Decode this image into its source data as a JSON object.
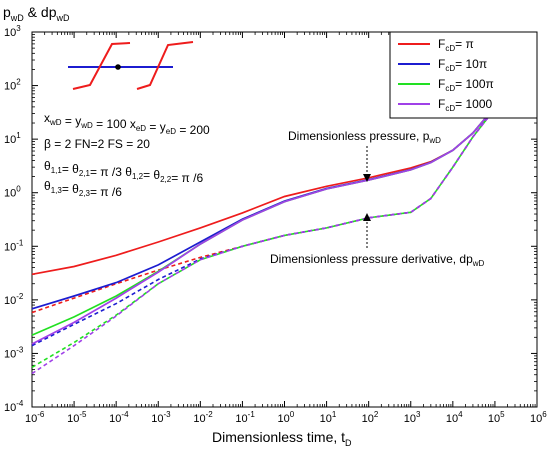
{
  "chart_data": {
    "type": "line",
    "x_scale": "log",
    "y_scale": "log",
    "xlim": [
      1e-06,
      1000000.0
    ],
    "ylim": [
      0.0001,
      1000.0
    ],
    "grid": false,
    "legend_position": "top-right",
    "ylabel": {
      "main": "p",
      "sub1": "wD",
      "mid": " & dp",
      "sub2": "wD"
    },
    "xlabel": {
      "main": "Dimensionless time, t",
      "sub": "D"
    },
    "x_ticks": [
      {
        "base": "10",
        "exp": "-6",
        "value": 1e-06
      },
      {
        "base": "10",
        "exp": "-5",
        "value": 1e-05
      },
      {
        "base": "10",
        "exp": "-4",
        "value": 0.0001
      },
      {
        "base": "10",
        "exp": "-3",
        "value": 0.001
      },
      {
        "base": "10",
        "exp": "-2",
        "value": 0.01
      },
      {
        "base": "10",
        "exp": "-1",
        "value": 0.1
      },
      {
        "base": "10",
        "exp": "0",
        "value": 1.0
      },
      {
        "base": "10",
        "exp": "1",
        "value": 10.0
      },
      {
        "base": "10",
        "exp": "2",
        "value": 100.0
      },
      {
        "base": "10",
        "exp": "3",
        "value": 1000.0
      },
      {
        "base": "10",
        "exp": "4",
        "value": 10000.0
      },
      {
        "base": "10",
        "exp": "5",
        "value": 100000.0
      },
      {
        "base": "10",
        "exp": "6",
        "value": 1000000.0
      }
    ],
    "y_ticks": [
      {
        "base": "10",
        "exp": "-4",
        "value": 0.0001
      },
      {
        "base": "10",
        "exp": "-3",
        "value": 0.001
      },
      {
        "base": "10",
        "exp": "-2",
        "value": 0.01
      },
      {
        "base": "10",
        "exp": "-1",
        "value": 0.1
      },
      {
        "base": "10",
        "exp": "0",
        "value": 1.0
      },
      {
        "base": "10",
        "exp": "1",
        "value": 10.0
      },
      {
        "base": "10",
        "exp": "2",
        "value": 100.0
      },
      {
        "base": "10",
        "exp": "3",
        "value": 1000.0
      }
    ],
    "series": [
      {
        "name": "F_cD = π",
        "legend": {
          "main": "F",
          "sub": "cD",
          "rest": "= π"
        },
        "color": "#ee1c1c",
        "pressure": {
          "x": [
            1e-06,
            1e-05,
            0.0001,
            0.001,
            0.01,
            0.1,
            1,
            10,
            100,
            1000,
            3000,
            10000,
            30000,
            100000,
            300000,
            1000000
          ],
          "y": [
            0.03,
            0.042,
            0.068,
            0.12,
            0.22,
            0.42,
            0.85,
            1.32,
            1.9,
            2.9,
            3.8,
            6.2,
            13,
            40,
            100,
            150
          ]
        },
        "derivative": {
          "x": [
            1e-06,
            1e-05,
            0.0001,
            0.001,
            0.01,
            0.1,
            1,
            10,
            100,
            1000,
            3000,
            10000,
            30000,
            100000,
            300000,
            1000000
          ],
          "y": [
            0.0058,
            0.0108,
            0.02,
            0.036,
            0.062,
            0.1,
            0.16,
            0.22,
            0.34,
            0.43,
            0.78,
            3.0,
            11,
            37,
            97,
            150
          ]
        }
      },
      {
        "name": "F_cD = 10π",
        "legend": {
          "main": "F",
          "sub": "cD",
          "rest": "= 10π"
        },
        "color": "#1c1cd0",
        "pressure": {
          "x": [
            1e-06,
            1e-05,
            0.0001,
            0.001,
            0.01,
            0.1,
            1,
            10,
            100,
            1000,
            3000,
            10000,
            30000,
            100000,
            300000,
            1000000
          ],
          "y": [
            0.0068,
            0.0118,
            0.021,
            0.045,
            0.12,
            0.32,
            0.7,
            1.2,
            1.75,
            2.7,
            3.7,
            6.2,
            13,
            40,
            100,
            150
          ]
        },
        "derivative": {
          "x": [
            1e-06,
            1e-05,
            0.0001,
            0.001,
            0.01,
            0.1,
            1,
            10,
            100,
            1000,
            3000,
            10000,
            30000,
            100000,
            300000,
            1000000
          ],
          "y": [
            0.0014,
            0.0035,
            0.0085,
            0.024,
            0.058,
            0.1,
            0.16,
            0.22,
            0.34,
            0.43,
            0.78,
            3.0,
            11,
            37,
            97,
            150
          ]
        }
      },
      {
        "name": "F_cD = 100π",
        "legend": {
          "main": "F",
          "sub": "cD",
          "rest": "= 100π"
        },
        "color": "#22e022",
        "pressure": {
          "x": [
            1e-06,
            1e-05,
            0.0001,
            0.001,
            0.01,
            0.1,
            1,
            10,
            100,
            1000,
            3000,
            10000,
            30000,
            100000,
            300000,
            1000000
          ],
          "y": [
            0.0022,
            0.0048,
            0.0118,
            0.034,
            0.11,
            0.31,
            0.68,
            1.18,
            1.72,
            2.68,
            3.65,
            6.2,
            13,
            40,
            100,
            150
          ]
        },
        "derivative": {
          "x": [
            1e-06,
            1e-05,
            0.0001,
            0.001,
            0.01,
            0.1,
            1,
            10,
            100,
            1000,
            3000,
            10000,
            30000,
            100000,
            300000,
            1000000
          ],
          "y": [
            0.00055,
            0.0016,
            0.0052,
            0.02,
            0.056,
            0.1,
            0.16,
            0.22,
            0.34,
            0.43,
            0.78,
            3.0,
            11,
            37,
            97,
            150
          ]
        }
      },
      {
        "name": "F_cD = 1000",
        "legend": {
          "main": "F",
          "sub": "cD",
          "rest": "= 1000"
        },
        "color": "#a040e8",
        "pressure": {
          "x": [
            1e-06,
            1e-05,
            0.0001,
            0.001,
            0.01,
            0.1,
            1,
            10,
            100,
            1000,
            3000,
            10000,
            30000,
            100000,
            300000,
            1000000
          ],
          "y": [
            0.0015,
            0.0038,
            0.0108,
            0.033,
            0.11,
            0.31,
            0.68,
            1.18,
            1.72,
            2.68,
            3.65,
            6.2,
            13,
            40,
            100,
            150
          ]
        },
        "derivative": {
          "x": [
            1e-06,
            1e-05,
            0.0001,
            0.001,
            0.01,
            0.1,
            1,
            10,
            100,
            1000,
            3000,
            10000,
            30000,
            100000,
            300000,
            1000000
          ],
          "y": [
            0.00042,
            0.0014,
            0.005,
            0.02,
            0.056,
            0.1,
            0.16,
            0.22,
            0.34,
            0.43,
            0.78,
            3.0,
            11,
            37,
            97,
            150
          ]
        }
      }
    ],
    "annotations": {
      "pressure": {
        "main": "Dimensionless pressure, p",
        "sub": "wD"
      },
      "derivative": {
        "main": "Dimensionless pressure derivative, dp",
        "sub": "wD"
      }
    },
    "parameters": [
      {
        "parts": [
          [
            "x",
            "wD"
          ],
          [
            " = y",
            "wD"
          ],
          [
            " = 100   x",
            "eD"
          ],
          [
            " = y",
            "eD"
          ],
          [
            " = 200",
            ""
          ]
        ]
      },
      {
        "parts": [
          [
            "β = 2    FN=2    FS = 20",
            ""
          ]
        ]
      },
      {
        "parts": [
          [
            "θ",
            "1,1"
          ],
          [
            "= θ",
            "2,1"
          ],
          [
            "= π /3  θ",
            "1,2"
          ],
          [
            "= θ",
            "2,2"
          ],
          [
            "= π /6",
            ""
          ]
        ]
      },
      {
        "parts": [
          [
            "θ",
            "1,3"
          ],
          [
            "= θ",
            "2,3"
          ],
          [
            "= π /6",
            ""
          ]
        ]
      }
    ]
  }
}
